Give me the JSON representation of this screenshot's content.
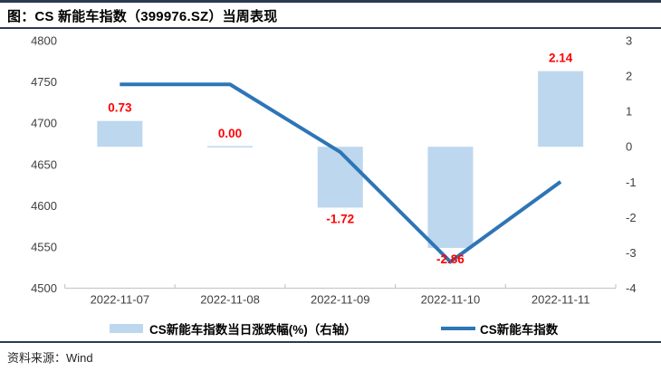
{
  "header": {
    "title": "图：CS 新能车指数（399976.SZ）当周表现"
  },
  "chart_data": {
    "type": "combo-bar-line",
    "categories": [
      "2022-11-07",
      "2022-11-08",
      "2022-11-09",
      "2022-11-10",
      "2022-11-11"
    ],
    "series": [
      {
        "name": "CS新能车指数当日涨跌幅(%)（右轴）",
        "type": "bar",
        "axis": "right",
        "values": [
          0.73,
          0.0,
          -1.72,
          -2.86,
          2.14
        ],
        "labels": [
          "0.73",
          "0.00",
          "-1.72",
          "-2.86",
          "2.14"
        ],
        "color": "#BDD7EE",
        "label_color": "#FF0000"
      },
      {
        "name": "CS新能车指数",
        "type": "line",
        "axis": "left",
        "values": [
          4747,
          4747,
          4665,
          4532,
          4629
        ],
        "color": "#2E75B6"
      }
    ],
    "left_axis": {
      "min": 4500,
      "max": 4800,
      "step": 50,
      "ticks": [
        "4800",
        "4750",
        "4700",
        "4650",
        "4600",
        "4550",
        "4500"
      ]
    },
    "right_axis": {
      "min": -4,
      "max": 3,
      "step": 1,
      "ticks": [
        "3",
        "2",
        "1",
        "0",
        "-1",
        "-2",
        "-3",
        "-4"
      ]
    },
    "grid": false,
    "legend_position": "bottom"
  },
  "colors": {
    "rule": "#2B3A4F",
    "axis_text": "#404040",
    "axis_line": "#C9C9C9",
    "background": "#FFFFFF"
  },
  "footer": {
    "source": "资料来源：Wind"
  }
}
